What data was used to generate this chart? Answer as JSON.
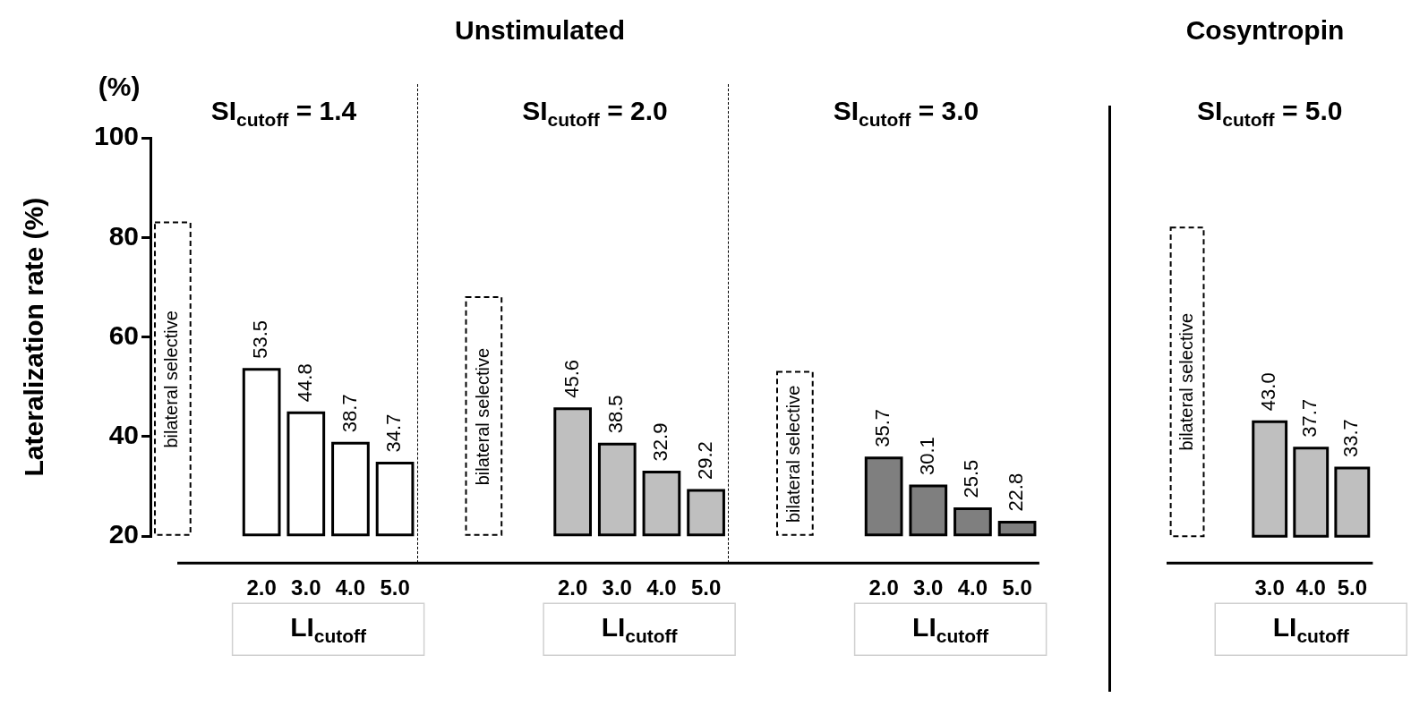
{
  "chart_data": [
    {
      "type": "bar",
      "title": "Unstimulated",
      "ylabel": "Lateralization rate (%)",
      "xlabel": "LI$_{cutoff}$",
      "ylim": [
        20,
        100
      ],
      "yticks": [
        20,
        40,
        60,
        80,
        100
      ],
      "grid": false,
      "legend": false,
      "annotations": [
        "(%)",
        "SI$_{cutoff}$ = 1.4",
        "SI$_{cutoff}$ = 2.0",
        "SI$_{cutoff}$ = 3.0"
      ],
      "categories": [
        null,
        null,
        "2.0",
        "3.0",
        "4.0",
        "5.0",
        null,
        null,
        null,
        "2.0",
        "3.0",
        "4.0",
        "5.0",
        null,
        null,
        null,
        "2.0",
        "3.0",
        "4.0",
        "5.0"
      ],
      "series": [
        {
          "name": "bilateral selective",
          "color": "#ffffff",
          "line_style": "dashed",
          "values": [
            83,
            null,
            null,
            null,
            null,
            null,
            null,
            68,
            null,
            null,
            null,
            null,
            null,
            null,
            53,
            null,
            null,
            null,
            null,
            null
          ]
        },
        {
          "colors": [
            null,
            null,
            "#ffffff",
            "#ffffff",
            "#ffffff",
            "#ffffff",
            null,
            null,
            null,
            "#bfbfbf",
            "#bfbfbf",
            "#bfbfbf",
            "#bfbfbf",
            null,
            null,
            null,
            "#7f7f7f",
            "#7f7f7f",
            "#7f7f7f",
            "#7f7f7f"
          ],
          "values": [
            null,
            null,
            53.5,
            44.8,
            38.7,
            34.7,
            null,
            null,
            null,
            45.6,
            38.5,
            32.9,
            29.2,
            null,
            null,
            null,
            35.7,
            30.1,
            25.5,
            22.8
          ],
          "value_labels": [
            null,
            null,
            "53.5",
            "44.8",
            "38.7",
            "34.7",
            null,
            null,
            null,
            "45.6",
            "38.5",
            "32.9",
            "29.2",
            null,
            null,
            null,
            "35.7",
            "30.1",
            "25.5",
            "22.8"
          ]
        }
      ]
    },
    {
      "type": "bar",
      "title": "Cosyntropin",
      "xlabel": "LI$_{cutoff}$",
      "ylim": [
        20,
        100
      ],
      "tick_labels": "x",
      "grid": false,
      "legend": false,
      "annotations": [
        "SI$_{cutoff}$ = 5.0"
      ],
      "categories": [
        null,
        null,
        "3.0",
        "4.0",
        "5.0"
      ],
      "series": [
        {
          "name": "bilateral selective",
          "color": "#ffffff",
          "line_style": "dashed",
          "values": [
            82,
            null,
            null,
            null,
            null
          ]
        },
        {
          "colors": [
            null,
            null,
            "#bfbfbf",
            "#bfbfbf",
            "#bfbfbf"
          ],
          "values": [
            null,
            null,
            43.0,
            37.7,
            33.7
          ],
          "value_labels": [
            null,
            null,
            "43.0",
            "37.7",
            "33.7"
          ]
        }
      ]
    }
  ]
}
